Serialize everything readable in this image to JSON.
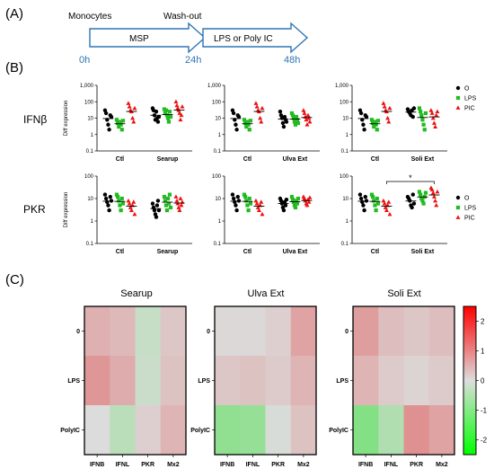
{
  "panel_labels": [
    "(A)",
    "(B)",
    "(C)"
  ],
  "timeline": {
    "label_monocytes": "Monocytes",
    "label_washout": "Wash-out",
    "arrow1_label": "MSP",
    "arrow2_label": "LPS or Poly IC",
    "times": [
      "0h",
      "24h",
      "48h"
    ],
    "arrow_color": "#2e75b6"
  },
  "legend": {
    "entries": [
      {
        "label": "O",
        "color": "#000000",
        "marker": "circle"
      },
      {
        "label": "LPS",
        "color": "#22bb22",
        "marker": "square"
      },
      {
        "label": "PIC",
        "color": "#ee1111",
        "marker": "triangle"
      }
    ]
  },
  "chart_data": [
    {
      "type": "scatter",
      "gene": "IFNβ",
      "scale": "log",
      "ylim": [
        0.1,
        1000
      ],
      "ylabel": "Diff expression",
      "yticks": [
        "0.1",
        "1",
        "10",
        "100",
        "1,000"
      ],
      "groups": [
        "Ctl",
        "Searup"
      ],
      "series": [
        {
          "name": "O",
          "values": [
            [
              30,
              20,
              8,
              4,
              2,
              15,
              12
            ],
            [
              40,
              30,
              15,
              8,
              25,
              10,
              6,
              12
            ]
          ]
        },
        {
          "name": "LPS",
          "values": [
            [
              8,
              5,
              3,
              6,
              4,
              2,
              7
            ],
            [
              35,
              20,
              30,
              15,
              10,
              6,
              25,
              12
            ]
          ]
        },
        {
          "name": "PIC",
          "values": [
            [
              80,
              50,
              30,
              25,
              10,
              6,
              40
            ],
            [
              100,
              60,
              40,
              30,
              20,
              8,
              15,
              50
            ]
          ]
        }
      ]
    },
    {
      "type": "scatter",
      "gene": "IFNβ",
      "scale": "log",
      "ylim": [
        0.1,
        1000
      ],
      "ylabel": "Diff expression",
      "yticks": [
        "0.1",
        "1",
        "10",
        "100",
        "1,000"
      ],
      "groups": [
        "Ctl",
        "Ulva Ext"
      ],
      "series": [
        {
          "name": "O",
          "values": [
            [
              30,
              20,
              8,
              4,
              2,
              15,
              12
            ],
            [
              25,
              15,
              10,
              5,
              3,
              12,
              8,
              6
            ]
          ]
        },
        {
          "name": "LPS",
          "values": [
            [
              8,
              5,
              3,
              6,
              4,
              2,
              7
            ],
            [
              20,
              15,
              10,
              6,
              4,
              12,
              8,
              5
            ]
          ]
        },
        {
          "name": "PIC",
          "values": [
            [
              80,
              50,
              30,
              25,
              10,
              6,
              40
            ],
            [
              30,
              20,
              12,
              8,
              4,
              15,
              10,
              6
            ]
          ]
        }
      ]
    },
    {
      "type": "scatter",
      "gene": "IFNβ",
      "scale": "log",
      "ylim": [
        0.1,
        1000
      ],
      "ylabel": "Diff expression",
      "yticks": [
        "0.1",
        "1",
        "10",
        "100",
        "1,000"
      ],
      "groups": [
        "Ctl",
        "Soli Ext"
      ],
      "series": [
        {
          "name": "O",
          "values": [
            [
              30,
              20,
              8,
              4,
              2,
              15,
              12
            ],
            [
              35,
              25,
              20,
              15,
              30,
              12,
              40
            ]
          ]
        },
        {
          "name": "LPS",
          "values": [
            [
              8,
              5,
              3,
              6,
              4,
              2,
              7
            ],
            [
              40,
              25,
              15,
              8,
              4,
              2,
              20
            ]
          ]
        },
        {
          "name": "PIC",
          "values": [
            [
              80,
              50,
              30,
              25,
              10,
              6,
              40
            ],
            [
              30,
              20,
              10,
              5,
              3,
              15,
              25
            ]
          ]
        }
      ]
    },
    {
      "type": "scatter",
      "gene": "PKR",
      "scale": "log",
      "ylim": [
        0.1,
        100
      ],
      "ylabel": "Diff expression",
      "yticks": [
        "0.1",
        "1",
        "10",
        "100"
      ],
      "groups": [
        "Ctl",
        "Searup"
      ],
      "series": [
        {
          "name": "O",
          "values": [
            [
              15,
              10,
              7,
              5,
              3,
              12,
              8
            ],
            [
              6,
              4,
              3,
              2,
              1.5,
              5,
              8,
              3
            ]
          ]
        },
        {
          "name": "LPS",
          "values": [
            [
              15,
              12,
              8,
              5,
              3,
              10,
              6
            ],
            [
              12,
              8,
              5,
              3,
              10,
              6,
              15,
              4
            ]
          ]
        },
        {
          "name": "PIC",
          "values": [
            [
              8,
              6,
              4,
              3,
              5,
              7,
              2
            ],
            [
              12,
              8,
              6,
              4,
              3,
              10,
              5,
              7
            ]
          ]
        }
      ]
    },
    {
      "type": "scatter",
      "gene": "PKR",
      "scale": "log",
      "ylim": [
        0.1,
        100
      ],
      "ylabel": "Diff expression",
      "yticks": [
        "0.1",
        "1",
        "10",
        "100"
      ],
      "groups": [
        "Ctl",
        "Ulva Ext"
      ],
      "series": [
        {
          "name": "O",
          "values": [
            [
              15,
              10,
              7,
              5,
              3,
              12,
              8
            ],
            [
              10,
              8,
              6,
              4,
              3,
              7,
              5,
              9
            ]
          ]
        },
        {
          "name": "LPS",
          "values": [
            [
              15,
              12,
              8,
              5,
              3,
              10,
              6
            ],
            [
              12,
              9,
              7,
              5,
              4,
              8,
              6,
              10
            ]
          ]
        },
        {
          "name": "PIC",
          "values": [
            [
              8,
              6,
              4,
              3,
              5,
              7,
              2
            ],
            [
              12,
              10,
              8,
              6,
              5,
              9,
              7,
              11
            ]
          ]
        }
      ]
    },
    {
      "type": "scatter",
      "gene": "PKR",
      "scale": "log",
      "ylim": [
        0.1,
        100
      ],
      "ylabel": "Diff expression",
      "yticks": [
        "0.1",
        "1",
        "10",
        "100"
      ],
      "groups": [
        "Ctl",
        "Soli Ext"
      ],
      "significance": "*",
      "series": [
        {
          "name": "O",
          "values": [
            [
              15,
              10,
              7,
              5,
              3,
              12,
              8
            ],
            [
              12,
              10,
              8,
              5,
              4,
              15,
              6
            ]
          ]
        },
        {
          "name": "LPS",
          "values": [
            [
              15,
              12,
              8,
              5,
              3,
              10,
              6
            ],
            [
              20,
              15,
              10,
              8,
              6,
              12,
              18
            ]
          ]
        },
        {
          "name": "PIC",
          "values": [
            [
              8,
              6,
              4,
              3,
              5,
              7,
              2
            ],
            [
              30,
              25,
              18,
              12,
              8,
              5,
              20
            ]
          ]
        }
      ]
    },
    {
      "type": "heatmap",
      "title": "Searup",
      "rows": [
        "0",
        "LPS",
        "PolyIC"
      ],
      "cols": [
        "IFNB",
        "IFNL",
        "PKR",
        "Mx2"
      ],
      "values": [
        [
          0.5,
          0.4,
          -0.25,
          0.25
        ],
        [
          0.8,
          0.55,
          -0.2,
          0.3
        ],
        [
          0.0,
          -0.4,
          0.15,
          0.45
        ]
      ]
    },
    {
      "type": "heatmap",
      "title": "Ulva Ext",
      "rows": [
        "0",
        "LPS",
        "PolyIC"
      ],
      "cols": [
        "IFNB",
        "IFNL",
        "PKR",
        "Mx2"
      ],
      "values": [
        [
          0.05,
          0.05,
          0.15,
          0.65
        ],
        [
          0.25,
          0.3,
          0.2,
          0.45
        ],
        [
          -0.85,
          -0.8,
          -0.05,
          0.3
        ]
      ]
    },
    {
      "type": "heatmap",
      "title": "Soli Ext",
      "rows": [
        "0",
        "LPS",
        "PolyIC"
      ],
      "cols": [
        "IFNB",
        "IFNL",
        "PKR",
        "Mx2"
      ],
      "values": [
        [
          0.7,
          0.35,
          0.25,
          0.35
        ],
        [
          0.45,
          0.2,
          0.1,
          0.2
        ],
        [
          -1.0,
          -0.5,
          0.85,
          0.65
        ]
      ]
    },
    {
      "type": "colorbar",
      "vmin": -2.5,
      "vmax": 2.5,
      "ticks": [
        "2",
        "1",
        "0",
        "-1",
        "-2"
      ]
    }
  ]
}
